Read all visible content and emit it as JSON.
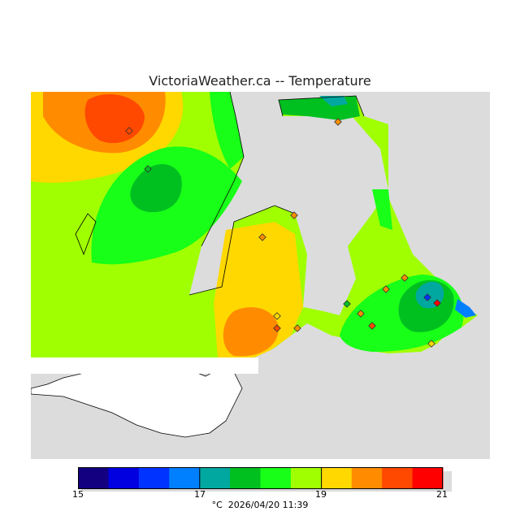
{
  "title": "VictoriaWeather.ca -- Temperature",
  "legend": {
    "min": 15,
    "max": 21,
    "ticks": [
      "15",
      "17",
      "19",
      "21"
    ],
    "colors": [
      "#120080",
      "#0000e0",
      "#0033ff",
      "#0080ff",
      "#00a8a0",
      "#00c020",
      "#18ff18",
      "#a0ff00",
      "#ffd800",
      "#ff8c00",
      "#ff4800",
      "#ff0000"
    ],
    "unit": "°C",
    "timestamp": "2026/04/20 11:39"
  },
  "colors": {
    "water": "#dcdcdc",
    "nodata_land": "#ffffff"
  }
}
